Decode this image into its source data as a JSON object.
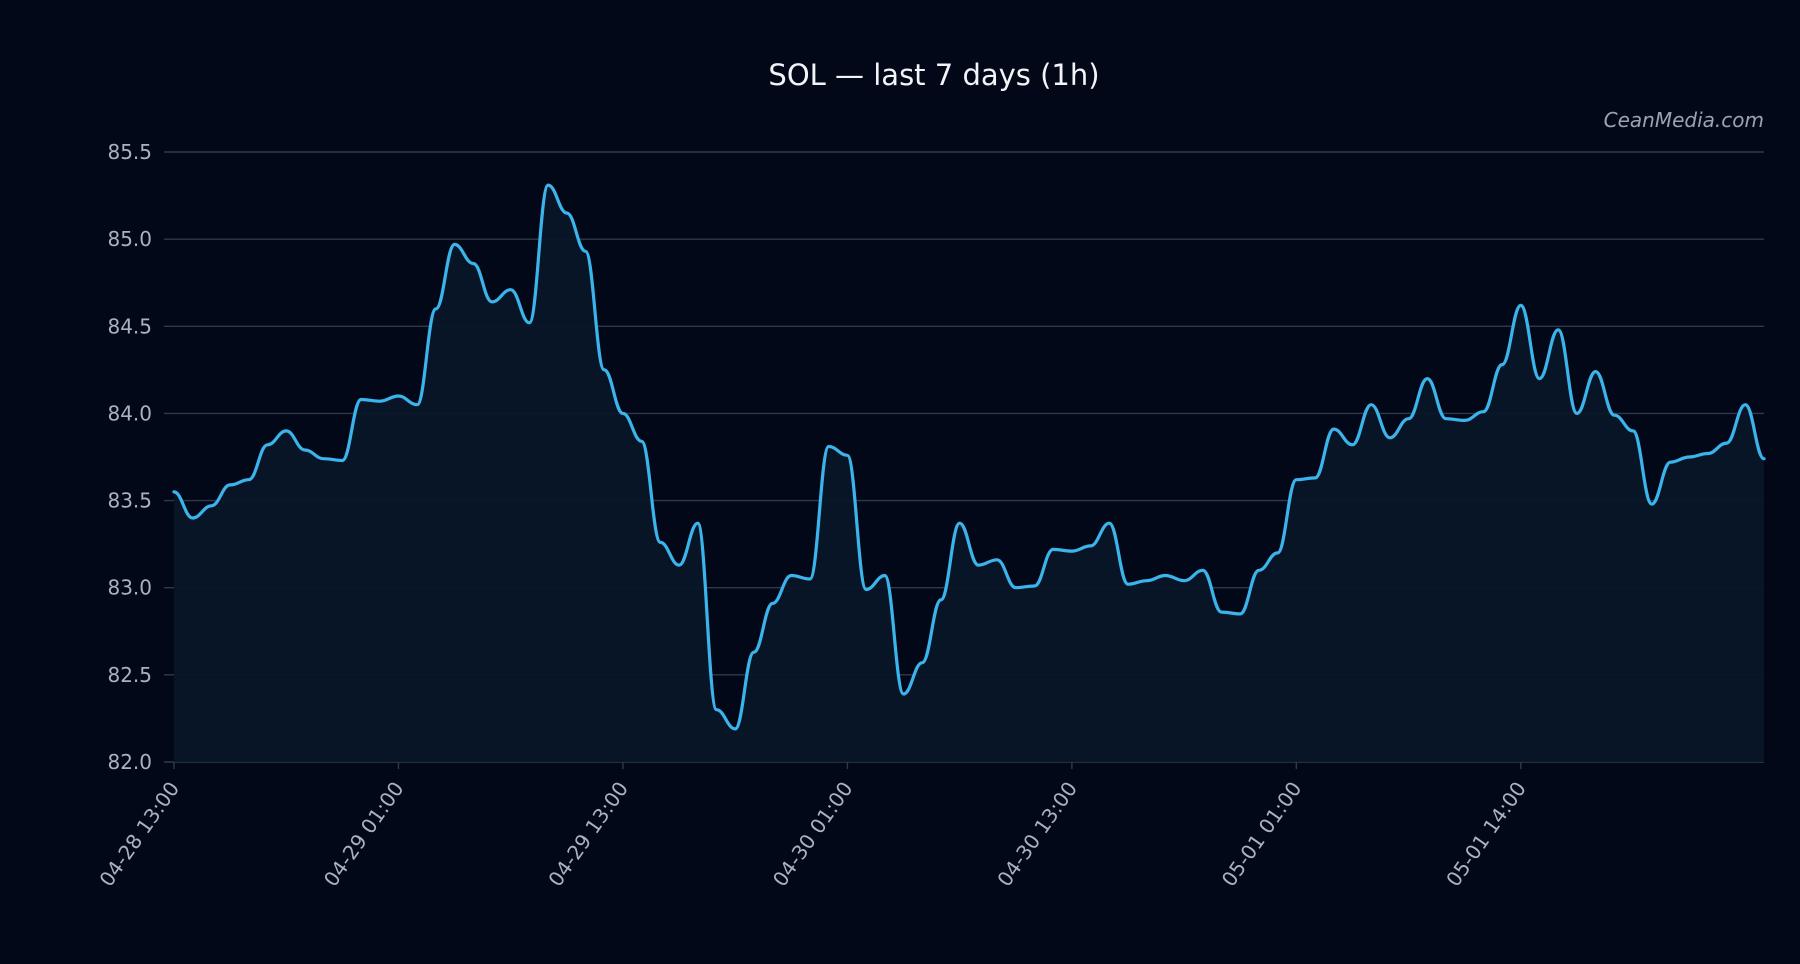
{
  "watermark": "CeanMedia.com",
  "colors": {
    "background": "#030818",
    "line": "#3bb4ec",
    "fill": "#081628",
    "grid": "#2e3a4c",
    "tick_text": "#a9b2c0",
    "title_text": "#f2f4f8",
    "watermark_text": "#9aa3b0"
  },
  "chart_data": {
    "type": "area",
    "title": "SOL — last 7 days (1h)",
    "xlabel": "",
    "ylabel": "",
    "ylim": [
      82.0,
      85.5
    ],
    "yticks": [
      82.0,
      82.5,
      83.0,
      83.5,
      84.0,
      84.5,
      85.0,
      85.5
    ],
    "ytick_labels": [
      "82.0",
      "82.5",
      "83.0",
      "83.5",
      "84.0",
      "84.5",
      "85.0",
      "85.5"
    ],
    "xticks": [
      {
        "index": 0,
        "label": "04-28 13:00"
      },
      {
        "index": 12,
        "label": "04-29 01:00"
      },
      {
        "index": 24,
        "label": "04-29 13:00"
      },
      {
        "index": 36,
        "label": "04-30 01:00"
      },
      {
        "index": 48,
        "label": "04-30 13:00"
      },
      {
        "index": 60,
        "label": "05-01 01:00"
      },
      {
        "index": 72,
        "label": "05-01 14:00"
      }
    ],
    "grid": true,
    "legend": "none",
    "series": [
      {
        "values": [
          83.55,
          83.4,
          83.47,
          83.59,
          83.62,
          83.82,
          83.9,
          83.79,
          83.74,
          83.73,
          84.08,
          84.07,
          84.1,
          84.05,
          84.6,
          84.97,
          84.86,
          84.64,
          84.71,
          84.52,
          85.31,
          85.15,
          84.93,
          84.25,
          84.0,
          83.84,
          83.26,
          83.13,
          83.37,
          82.3,
          82.19,
          82.63,
          82.91,
          83.07,
          83.05,
          83.81,
          83.76,
          82.99,
          83.07,
          82.39,
          82.57,
          82.93,
          83.37,
          83.13,
          83.16,
          83.0,
          83.01,
          83.22,
          83.21,
          83.24,
          83.37,
          83.02,
          83.04,
          83.07,
          83.04,
          83.1,
          82.86,
          82.85,
          83.1,
          83.2,
          83.62,
          83.63,
          83.91,
          83.82,
          84.05,
          83.86,
          83.97,
          84.2,
          83.97,
          83.96,
          84.01,
          84.28,
          84.62,
          84.2,
          84.48,
          84.0,
          84.24,
          83.99,
          83.9,
          83.48,
          83.72,
          83.75,
          83.77,
          83.83,
          84.05,
          83.74
        ]
      }
    ]
  }
}
